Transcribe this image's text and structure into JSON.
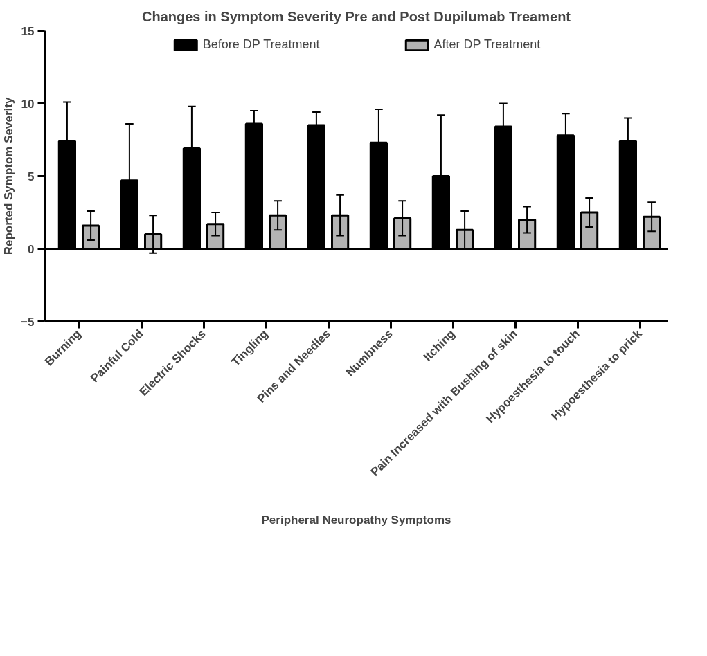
{
  "chart_data": {
    "type": "bar",
    "title": "Changes in Symptom Severity Pre and Post Dupilumab Treament",
    "xlabel": "Peripheral Neuropathy Symptoms",
    "ylabel": "Reported Symptom Severity",
    "categories": [
      "Burning",
      "Painful Cold",
      "Electric Shocks",
      "Tingling",
      "Pins and Needles",
      "Numbness",
      "Itching",
      "Pain Increased with Bushing of skin",
      "Hypoesthesia to touch",
      "Hypoesthesia to prick"
    ],
    "series": [
      {
        "name": "Before DP Treatment",
        "color": "#000000",
        "values": [
          7.4,
          4.7,
          6.9,
          8.6,
          8.5,
          7.3,
          5.0,
          8.4,
          7.8,
          7.4
        ],
        "errors": [
          [
            7.4,
            10.1
          ],
          [
            4.7,
            8.6
          ],
          [
            6.9,
            9.8
          ],
          [
            8.6,
            9.5
          ],
          [
            8.5,
            9.4
          ],
          [
            7.3,
            9.6
          ],
          [
            5.0,
            9.2
          ],
          [
            8.4,
            10.0
          ],
          [
            7.8,
            9.3
          ],
          [
            7.4,
            9.0
          ]
        ]
      },
      {
        "name": "After DP Treatment",
        "color": "#b3b3b3",
        "values": [
          1.6,
          1.0,
          1.7,
          2.3,
          2.3,
          2.1,
          1.3,
          2.0,
          2.5,
          2.2
        ],
        "errors": [
          1.0,
          1.3,
          0.8,
          1.0,
          1.4,
          1.2,
          1.3,
          0.9,
          1.0,
          1.0
        ]
      }
    ],
    "ylim": [
      -5,
      15
    ],
    "yticks": [
      -5,
      0,
      5,
      10,
      15
    ],
    "ref_lines": [
      {
        "axis": "y",
        "value": 0,
        "color": "#000000"
      }
    ],
    "grid": false,
    "legend": "top"
  }
}
